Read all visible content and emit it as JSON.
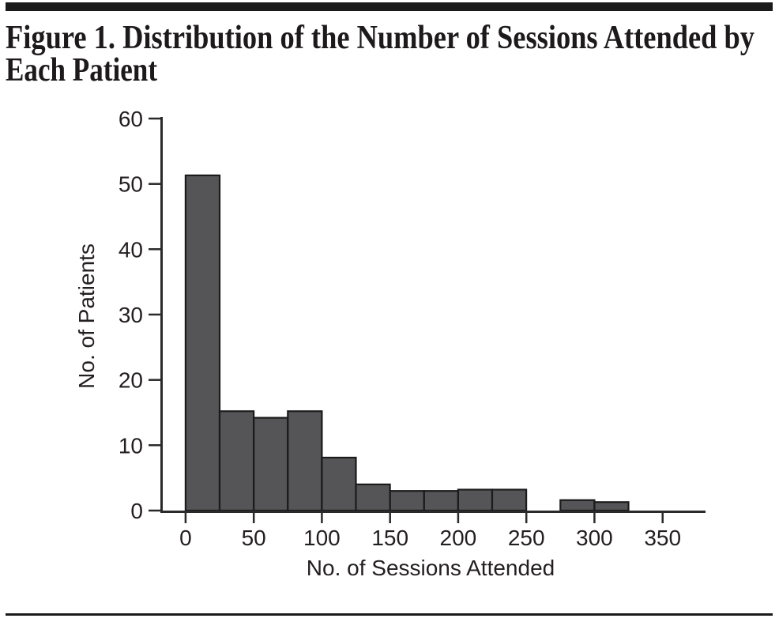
{
  "figure": {
    "title_lines": [
      "Figure 1. Distribution of the Number of Sessions Attended by",
      "Each Patient"
    ]
  },
  "chart_data": {
    "type": "bar",
    "subtype": "histogram",
    "title": "Figure 1. Distribution of the Number of Sessions Attended by Each Patient",
    "xlabel": "No. of Sessions Attended",
    "ylabel": "No. of Patients",
    "bin_width": 25,
    "bins": [
      {
        "start": 0,
        "end": 25,
        "count": 51.3
      },
      {
        "start": 25,
        "end": 50,
        "count": 15.2
      },
      {
        "start": 50,
        "end": 75,
        "count": 14.2
      },
      {
        "start": 75,
        "end": 100,
        "count": 15.2
      },
      {
        "start": 100,
        "end": 125,
        "count": 8.1
      },
      {
        "start": 125,
        "end": 150,
        "count": 4.0
      },
      {
        "start": 150,
        "end": 175,
        "count": 3.0
      },
      {
        "start": 175,
        "end": 200,
        "count": 3.0
      },
      {
        "start": 200,
        "end": 225,
        "count": 3.2
      },
      {
        "start": 225,
        "end": 250,
        "count": 3.2
      },
      {
        "start": 250,
        "end": 275,
        "count": 0
      },
      {
        "start": 275,
        "end": 300,
        "count": 1.6
      },
      {
        "start": 300,
        "end": 325,
        "count": 1.3
      },
      {
        "start": 325,
        "end": 350,
        "count": 0
      }
    ],
    "x_ticks": [
      0,
      50,
      100,
      150,
      200,
      250,
      300,
      350
    ],
    "y_ticks": [
      0,
      10,
      20,
      30,
      40,
      50,
      60
    ],
    "xlim": [
      -18.5,
      381.5
    ],
    "ylim": [
      0,
      60
    ],
    "grid": false,
    "legend": null,
    "bar_fill": "#555557",
    "bar_stroke": "#1b1b1b",
    "axis_color": "#2a2a2a",
    "text_color": "#231f20",
    "rule_color": "#1a1a1a"
  }
}
